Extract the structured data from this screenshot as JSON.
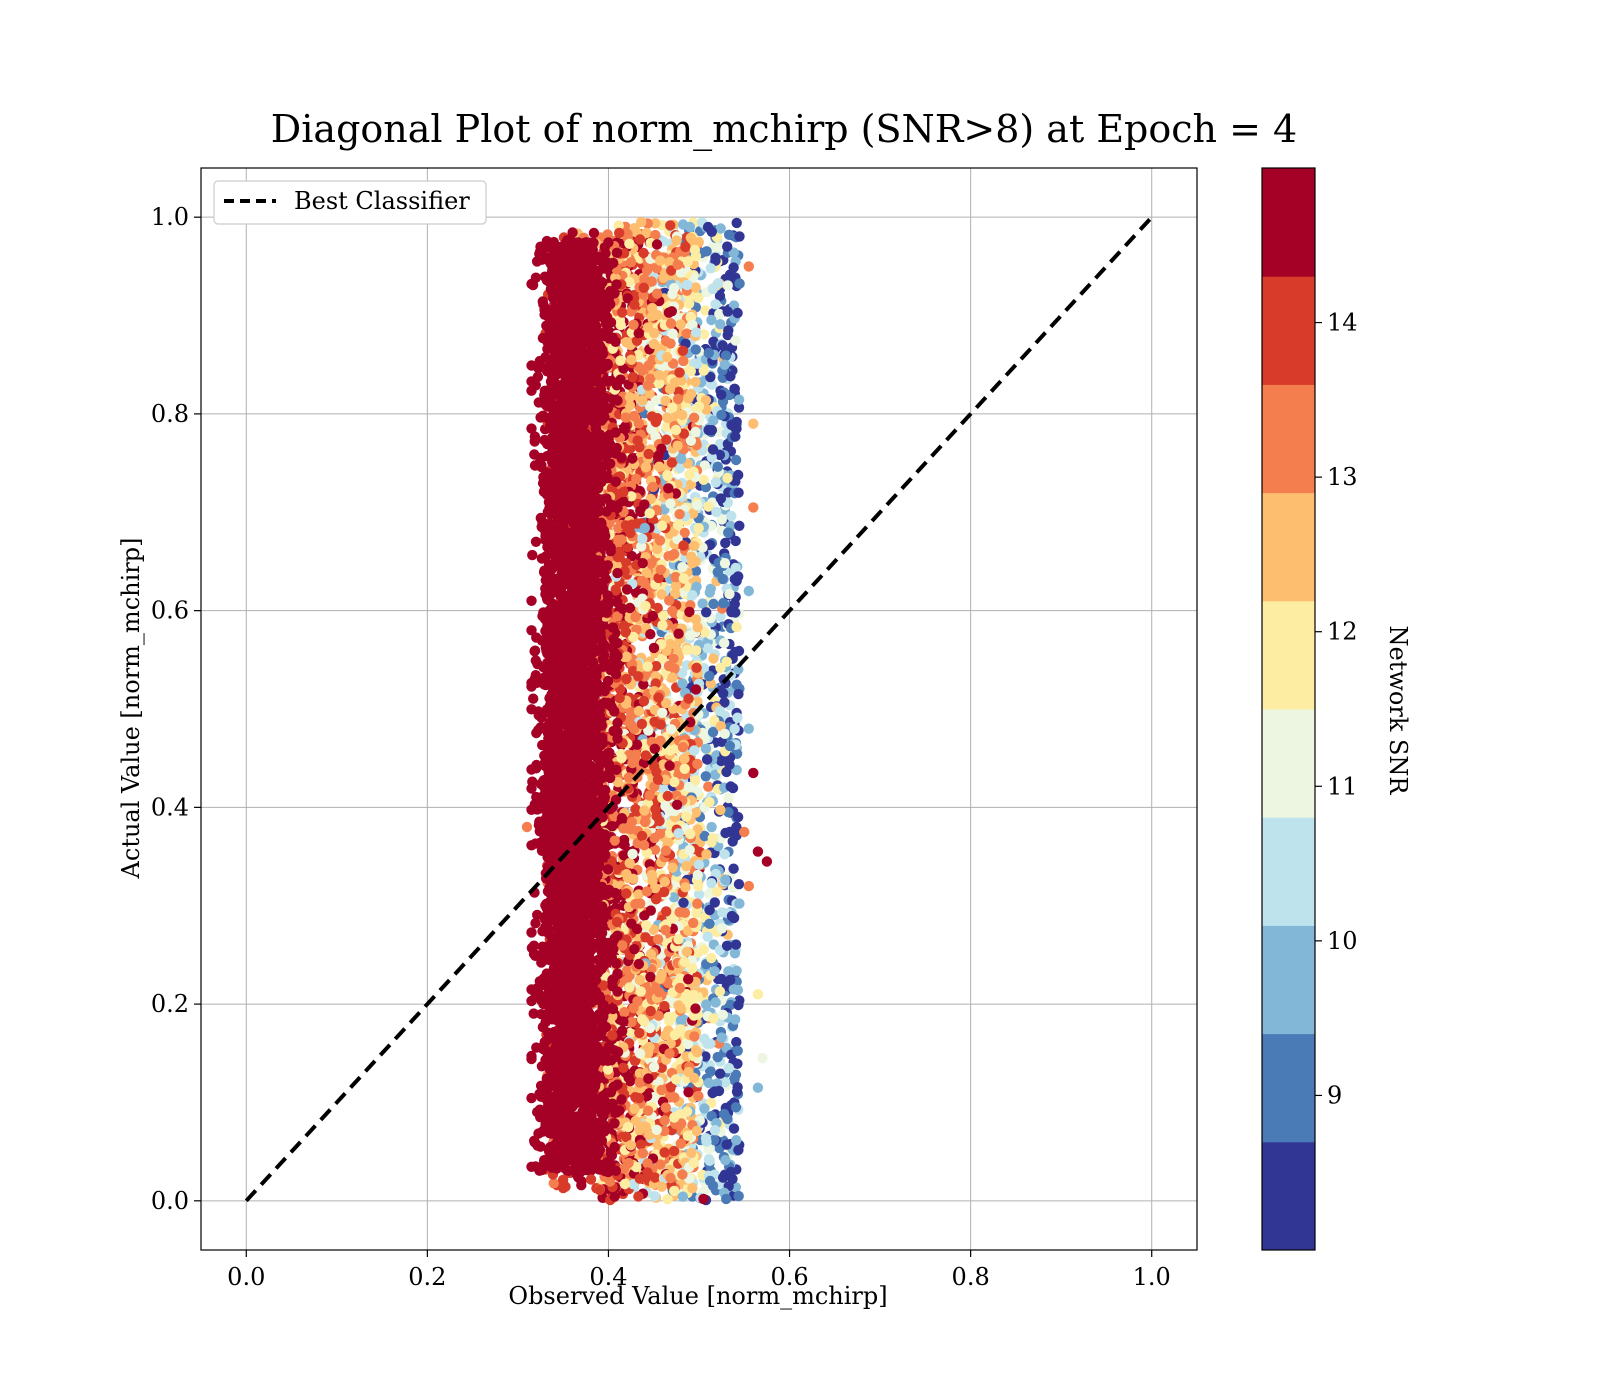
{
  "chart_data": {
    "type": "scatter",
    "title": "Diagonal Plot of norm_mchirp (SNR>8) at Epoch = 4",
    "xlabel": "Observed Value [norm_mchirp]",
    "ylabel": "Actual Value [norm_mchirp]",
    "xlim": [
      -0.05,
      1.05
    ],
    "ylim": [
      -0.05,
      1.05
    ],
    "xticks": [
      0.0,
      0.2,
      0.4,
      0.6,
      0.8,
      1.0
    ],
    "yticks": [
      0.0,
      0.2,
      0.4,
      0.6,
      0.8,
      1.0
    ],
    "xtick_labels": [
      "0.0",
      "0.2",
      "0.4",
      "0.6",
      "0.8",
      "1.0"
    ],
    "ytick_labels": [
      "0.0",
      "0.2",
      "0.4",
      "0.6",
      "0.8",
      "1.0"
    ],
    "grid": true,
    "legend": {
      "placement": "upper-left",
      "entries": [
        {
          "label": "Best Classifier",
          "style": "dashed",
          "color": "#000000"
        }
      ]
    },
    "reference_line": {
      "name": "Best Classifier",
      "x": [
        0.0,
        1.0
      ],
      "y": [
        0.0,
        1.0
      ]
    },
    "colorbar": {
      "label": "Network SNR",
      "range": [
        8,
        15
      ],
      "tick_values": [
        9,
        10,
        11,
        12,
        13,
        14
      ],
      "tick_labels": [
        "9",
        "10",
        "11",
        "12",
        "13",
        "14"
      ],
      "bins": [
        {
          "from": 8.0,
          "to": 8.7,
          "color": "#313695"
        },
        {
          "from": 8.7,
          "to": 9.4,
          "color": "#4a7bb7"
        },
        {
          "from": 9.4,
          "to": 10.1,
          "color": "#82b7d7"
        },
        {
          "from": 10.1,
          "to": 10.8,
          "color": "#bfe3ed"
        },
        {
          "from": 10.8,
          "to": 11.5,
          "color": "#edf6e0"
        },
        {
          "from": 11.5,
          "to": 12.2,
          "color": "#fdeda2"
        },
        {
          "from": 12.2,
          "to": 12.9,
          "color": "#fdbe70"
        },
        {
          "from": 12.9,
          "to": 13.6,
          "color": "#f57e4e"
        },
        {
          "from": 13.6,
          "to": 14.3,
          "color": "#d93b2b"
        },
        {
          "from": 14.3,
          "to": 15.0,
          "color": "#a50026"
        }
      ]
    },
    "series": [
      {
        "x_range_observed": [
          0.31,
          0.575
        ],
        "x_dense_core": [
          0.32,
          0.4
        ],
        "y_range_actual": [
          0.0,
          0.995
        ],
        "description_of_color_trend": "high SNR (dark red) concentrated at observed 0.32-0.40; lower SNR (blue) toward observed 0.50-0.54",
        "points": [
          {
            "x": 0.325,
            "y": 0.97,
            "snr": 14.8
          },
          {
            "x": 0.33,
            "y": 0.81,
            "snr": 14.9
          },
          {
            "x": 0.32,
            "y": 0.67,
            "snr": 14.7
          },
          {
            "x": 0.315,
            "y": 0.61,
            "snr": 14.9
          },
          {
            "x": 0.315,
            "y": 0.58,
            "snr": 14.8
          },
          {
            "x": 0.31,
            "y": 0.38,
            "snr": 13.2
          },
          {
            "x": 0.32,
            "y": 0.25,
            "snr": 14.9
          },
          {
            "x": 0.325,
            "y": 0.055,
            "snr": 14.6
          },
          {
            "x": 0.37,
            "y": 0.03,
            "snr": 14.9
          },
          {
            "x": 0.555,
            "y": 0.95,
            "snr": 13.3
          },
          {
            "x": 0.56,
            "y": 0.79,
            "snr": 12.5
          },
          {
            "x": 0.56,
            "y": 0.705,
            "snr": 13.2
          },
          {
            "x": 0.555,
            "y": 0.62,
            "snr": 9.5
          },
          {
            "x": 0.56,
            "y": 0.435,
            "snr": 14.8
          },
          {
            "x": 0.565,
            "y": 0.355,
            "snr": 14.9
          },
          {
            "x": 0.575,
            "y": 0.345,
            "snr": 14.9
          },
          {
            "x": 0.555,
            "y": 0.32,
            "snr": 13.5
          },
          {
            "x": 0.565,
            "y": 0.21,
            "snr": 12.0
          },
          {
            "x": 0.57,
            "y": 0.145,
            "snr": 11.2
          },
          {
            "x": 0.565,
            "y": 0.115,
            "snr": 9.8
          },
          {
            "x": 0.51,
            "y": 0.99,
            "snr": 8.5
          },
          {
            "x": 0.49,
            "y": 0.99,
            "snr": 9.4
          },
          {
            "x": 0.53,
            "y": 0.002,
            "snr": 8.9
          },
          {
            "x": 0.505,
            "y": 0.002,
            "snr": 14.9
          },
          {
            "x": 0.555,
            "y": 0.48,
            "snr": 9.8
          },
          {
            "x": 0.55,
            "y": 0.375,
            "snr": 13.4
          }
        ]
      }
    ]
  }
}
